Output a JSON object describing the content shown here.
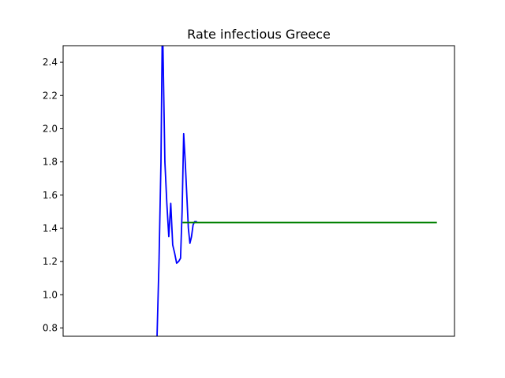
{
  "chart_data": {
    "type": "line",
    "title": "Rate infectious Greece",
    "xlabel": "",
    "ylabel": "",
    "ylim": [
      0.75,
      2.5
    ],
    "xlim": [
      0,
      100
    ],
    "yticks": [
      "0.8",
      "1.0",
      "1.2",
      "1.4",
      "1.6",
      "1.8",
      "2.0",
      "2.2",
      "2.4"
    ],
    "grid": false,
    "series": [
      {
        "color": "#0000ff",
        "x": [
          24,
          24.5,
          25,
          25.3,
          25.5,
          26,
          26.5,
          27,
          27.5,
          28,
          28.5,
          29,
          29.5,
          30,
          30.4,
          30.8,
          31.2,
          31.6,
          32,
          32.4,
          32.8,
          33.2,
          33.6,
          34,
          34.2
        ],
        "y": [
          0.75,
          1.2,
          1.8,
          2.5,
          2.5,
          1.8,
          1.55,
          1.35,
          1.55,
          1.3,
          1.25,
          1.19,
          1.2,
          1.22,
          1.5,
          1.97,
          1.8,
          1.6,
          1.4,
          1.31,
          1.35,
          1.42,
          1.44,
          1.44,
          1.44
        ]
      },
      {
        "color": "#008000",
        "x": [
          30.5,
          95.5
        ],
        "y": [
          1.435,
          1.435
        ]
      }
    ]
  }
}
